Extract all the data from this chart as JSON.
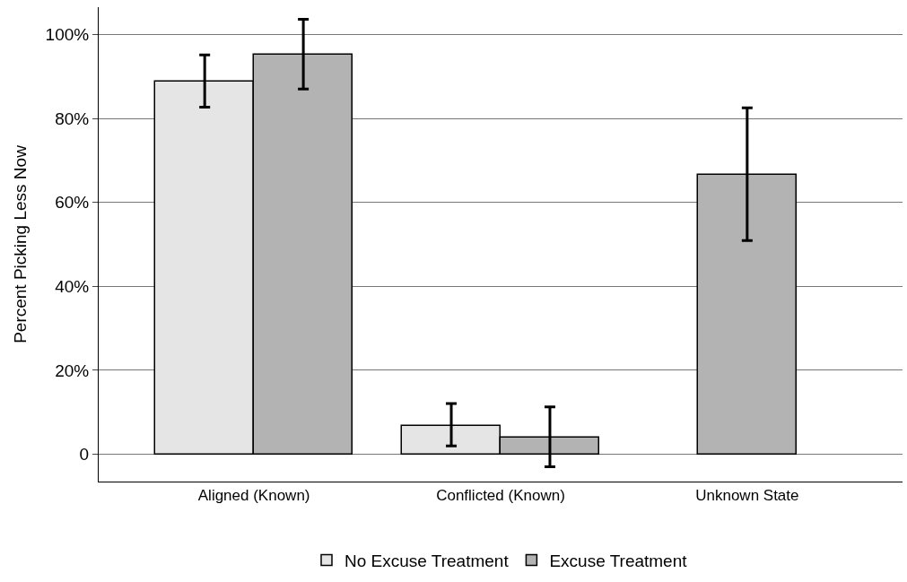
{
  "chart_data": {
    "type": "bar",
    "ylabel": "Percent Picking Less Now",
    "categories": [
      "Aligned (Known)",
      "Conflicted (Known)",
      "Unknown State"
    ],
    "series": [
      {
        "name": "No Excuse Treatment",
        "color": "#e5e5e5",
        "values": [
          88.8,
          6.8,
          null
        ],
        "errors": [
          [
            82.7,
            95.1
          ],
          [
            2.0,
            12.1
          ],
          null
        ]
      },
      {
        "name": "Excuse Treatment",
        "color": "#b3b3b3",
        "values": [
          95.1,
          4.0,
          66.6
        ],
        "errors": [
          [
            87.0,
            103.6
          ],
          [
            -3.0,
            11.3
          ],
          [
            50.9,
            82.5
          ]
        ]
      }
    ],
    "ylim": [
      -6.5,
      106.5
    ],
    "yticks": [
      {
        "value": 0,
        "label": "0"
      },
      {
        "value": 20,
        "label": "20%"
      },
      {
        "value": 40,
        "label": "40%"
      },
      {
        "value": 60,
        "label": "60%"
      },
      {
        "value": 80,
        "label": "80%"
      },
      {
        "value": 100,
        "label": "100%"
      }
    ],
    "grid": "y",
    "legend": "bottom"
  }
}
